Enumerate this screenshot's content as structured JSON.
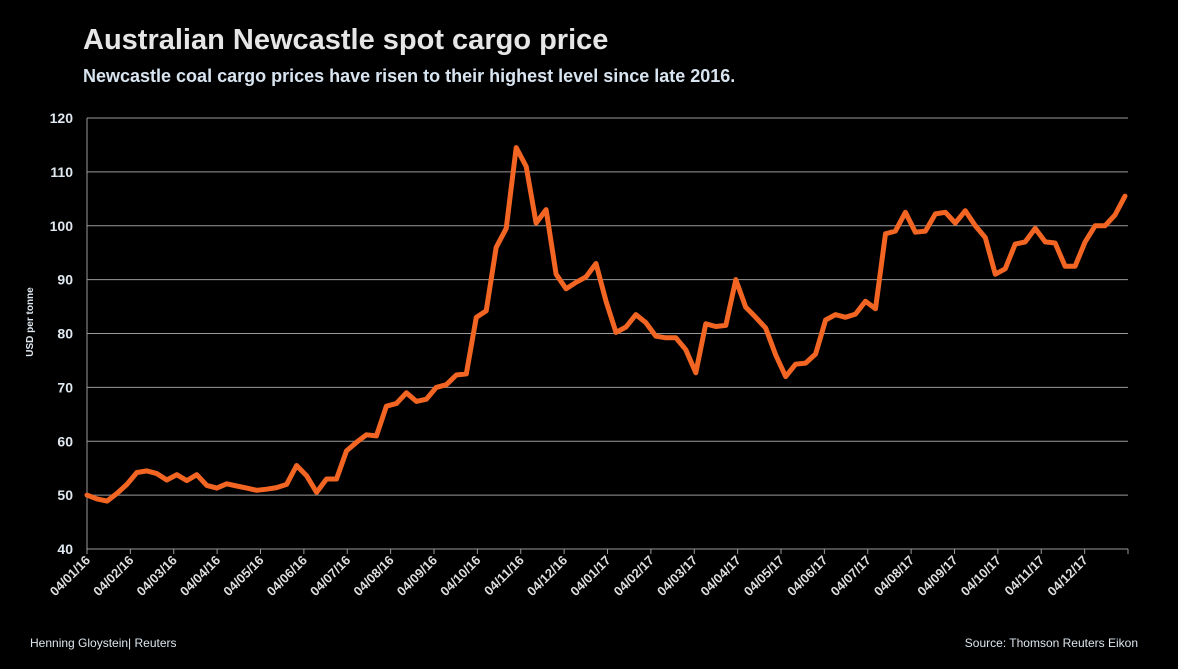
{
  "chart_data": {
    "type": "line",
    "title": "Australian Newcastle spot cargo price",
    "subtitle": "Newcastle coal cargo prices have risen to their highest level since late 2016.",
    "xlabel": "",
    "ylabel": "USD per tonne",
    "ylim": [
      40,
      120
    ],
    "yticks": [
      40,
      50,
      60,
      70,
      80,
      90,
      100,
      110,
      120
    ],
    "x_unit": "weeks since 04/01/16",
    "xlim_weeks": [
      0,
      104.3
    ],
    "xtick_labels": [
      "04/01/16",
      "04/02/16",
      "04/03/16",
      "04/04/16",
      "04/05/16",
      "04/06/16",
      "04/07/16",
      "04/08/16",
      "04/09/16",
      "04/10/16",
      "04/11/16",
      "04/12/16",
      "04/01/17",
      "04/02/17",
      "04/03/17",
      "04/04/17",
      "04/05/17",
      "04/06/17",
      "04/07/17",
      "04/08/17",
      "04/09/17",
      "04/10/17",
      "04/11/17",
      "04/12/17"
    ],
    "grid": true,
    "line_color": "#f26522",
    "series": [
      {
        "name": "Newcastle spot cargo price",
        "values": [
          50,
          49.3,
          48.9,
          50.3,
          52,
          54.2,
          54.5,
          54,
          52.8,
          53.8,
          52.7,
          53.8,
          51.8,
          51.3,
          52.1,
          51.7,
          51.3,
          50.9,
          51.1,
          51.4,
          52,
          55.5,
          53.6,
          50.5,
          53,
          53,
          58.2,
          59.8,
          61.2,
          61,
          66.5,
          67,
          69,
          67.4,
          67.8,
          70,
          70.5,
          72.3,
          72.5,
          83,
          84.2,
          96,
          99.5,
          114.5,
          111,
          100.5,
          103,
          91,
          88.3,
          89.5,
          90.5,
          93,
          86,
          80.2,
          81.2,
          83.5,
          82,
          79.5,
          79.2,
          79.2,
          77,
          72.7,
          81.8,
          81.3,
          81.5,
          90,
          84.9,
          83,
          81,
          76,
          72,
          74.3,
          74.5,
          76.2,
          82.5,
          83.5,
          83,
          83.6,
          86,
          84.6,
          98.5,
          99,
          102.5,
          98.8,
          99,
          102.2,
          102.5,
          100.5,
          102.8,
          100,
          97.8,
          91,
          92,
          96.6,
          97,
          99.5,
          97,
          96.8,
          92.5,
          92.5,
          97,
          100,
          100,
          102,
          105.5
        ]
      }
    ]
  },
  "footer": {
    "credit": "Henning Gloystein| Reuters",
    "source": "Source: Thomson Reuters Eikon"
  }
}
